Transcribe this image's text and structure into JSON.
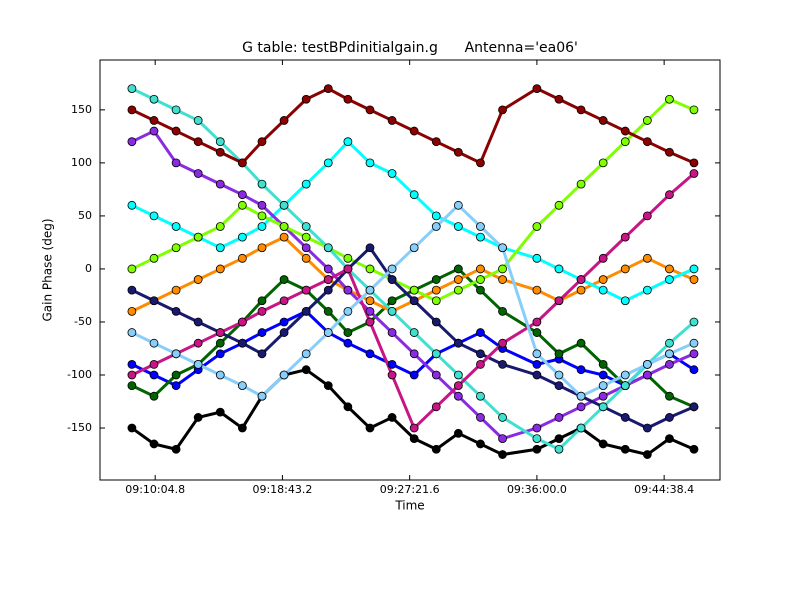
{
  "chart_data": {
    "type": "scatter",
    "title": "G table: testBPdinitialgain.g      Antenna='ea06'",
    "x_label": "Time",
    "y_label": "Gain Phase (deg)",
    "xlim": [
      32780,
      35306
    ],
    "ylim": [
      -199,
      197
    ],
    "xticks": [
      {
        "value": 33004.8,
        "label": "09:10:04.8"
      },
      {
        "value": 33523.2,
        "label": "09:18:43.2"
      },
      {
        "value": 34041.6,
        "label": "09:27:21.6"
      },
      {
        "value": 34560.0,
        "label": "09:36:00.0"
      },
      {
        "value": 35078.4,
        "label": "09:44:38.4"
      }
    ],
    "yticks": [
      -150,
      -100,
      -50,
      0,
      50,
      100,
      150
    ],
    "grid": false,
    "x": [
      32910,
      33000,
      33090,
      33180,
      33270,
      33360,
      33440,
      33530,
      33620,
      33710,
      33790,
      33880,
      33970,
      34060,
      34150,
      34240,
      34330,
      34420,
      34560,
      34650,
      34740,
      34830,
      34920,
      35010,
      35100,
      35200
    ],
    "series": [
      {
        "color": "#000000",
        "values": [
          -150,
          -165,
          -170,
          -140,
          -135,
          -150,
          -120,
          -100,
          -95,
          -110,
          -130,
          -150,
          -140,
          -160,
          -170,
          -155,
          -165,
          -175,
          -170,
          -160,
          -150,
          -165,
          -170,
          -175,
          -160,
          -170
        ]
      },
      {
        "color": "#0000ff",
        "values": [
          -90,
          -100,
          -110,
          -95,
          -80,
          -70,
          -60,
          -50,
          -40,
          -60,
          -70,
          -80,
          -90,
          -100,
          -80,
          -70,
          -60,
          -75,
          -90,
          -85,
          -95,
          -100,
          -110,
          -90,
          -80,
          -95
        ]
      },
      {
        "color": "#006400",
        "values": [
          -110,
          -120,
          -100,
          -90,
          -70,
          -50,
          -30,
          -10,
          -20,
          -40,
          -60,
          -50,
          -30,
          -20,
          -10,
          0,
          -20,
          -40,
          -60,
          -80,
          -70,
          -90,
          -110,
          -100,
          -120,
          -130
        ]
      },
      {
        "color": "#ff8c00",
        "values": [
          -40,
          -30,
          -20,
          -10,
          0,
          10,
          20,
          30,
          10,
          -10,
          -20,
          -30,
          -40,
          -30,
          -20,
          -10,
          0,
          -10,
          -20,
          -30,
          -20,
          -10,
          0,
          10,
          0,
          -10
        ]
      },
      {
        "color": "#00ffff",
        "values": [
          60,
          50,
          40,
          30,
          20,
          30,
          40,
          60,
          80,
          100,
          120,
          100,
          90,
          70,
          50,
          40,
          30,
          20,
          10,
          0,
          -10,
          -20,
          -30,
          -20,
          -10,
          0
        ]
      },
      {
        "color": "#8a2be2",
        "values": [
          120,
          130,
          100,
          90,
          80,
          70,
          60,
          40,
          20,
          0,
          -20,
          -40,
          -60,
          -80,
          -100,
          -120,
          -140,
          -160,
          -150,
          -140,
          -130,
          -120,
          -110,
          -100,
          -90,
          -80
        ]
      },
      {
        "color": "#7fff00",
        "values": [
          0,
          10,
          20,
          30,
          40,
          60,
          50,
          40,
          30,
          20,
          10,
          0,
          -10,
          -20,
          -30,
          -20,
          -10,
          0,
          40,
          60,
          80,
          100,
          120,
          140,
          160,
          150
        ]
      },
      {
        "color": "#191970",
        "values": [
          -20,
          -30,
          -40,
          -50,
          -60,
          -70,
          -80,
          -60,
          -40,
          -20,
          0,
          20,
          -10,
          -30,
          -50,
          -70,
          -80,
          -90,
          -100,
          -110,
          -120,
          -130,
          -140,
          -150,
          -140,
          -130
        ]
      },
      {
        "color": "#40e0d0",
        "values": [
          170,
          160,
          150,
          140,
          120,
          100,
          80,
          60,
          40,
          20,
          0,
          -20,
          -40,
          -60,
          -80,
          -100,
          -120,
          -140,
          -160,
          -170,
          -150,
          -130,
          -110,
          -90,
          -70,
          -50
        ]
      },
      {
        "color": "#c71585",
        "values": [
          -100,
          -90,
          -80,
          -70,
          -60,
          -50,
          -40,
          -30,
          -20,
          -10,
          0,
          -50,
          -100,
          -150,
          -130,
          -110,
          -90,
          -70,
          -50,
          -30,
          -10,
          10,
          30,
          50,
          70,
          90
        ]
      },
      {
        "color": "#8b0000",
        "values": [
          150,
          140,
          130,
          120,
          110,
          100,
          120,
          140,
          160,
          170,
          160,
          150,
          140,
          130,
          120,
          110,
          100,
          150,
          170,
          160,
          150,
          140,
          130,
          120,
          110,
          100
        ]
      },
      {
        "color": "#87cefa",
        "values": [
          -60,
          -70,
          -80,
          -90,
          -100,
          -110,
          -120,
          -100,
          -80,
          -60,
          -40,
          -20,
          0,
          20,
          40,
          60,
          40,
          20,
          -80,
          -100,
          -120,
          -110,
          -100,
          -90,
          -80,
          -70
        ]
      }
    ]
  }
}
